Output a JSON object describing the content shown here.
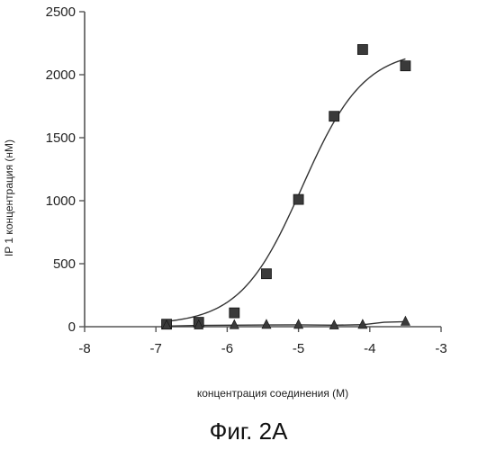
{
  "chart_data": {
    "type": "scatter",
    "title": "",
    "xlabel": "концентрация соединения (M)",
    "ylabel": "IP 1 концентрация (нM)",
    "xlim": [
      -8,
      -3
    ],
    "ylim": [
      0,
      2500
    ],
    "x_ticks": [
      "-8",
      "-7",
      "-6",
      "-5",
      "-4",
      "-3"
    ],
    "y_ticks": [
      "0",
      "500",
      "1000",
      "1500",
      "2000",
      "2500"
    ],
    "grid": false,
    "legend": "none",
    "series": [
      {
        "marker": "square",
        "color": "#3a3a3a",
        "x": [
          -6.85,
          -6.4,
          -5.9,
          -5.45,
          -5.0,
          -4.5,
          -4.1,
          -3.5
        ],
        "y": [
          20,
          35,
          110,
          420,
          1010,
          1670,
          2200,
          2070
        ],
        "fit": {
          "bottom": 15,
          "top": 2200,
          "log_ec50": -4.95,
          "hill": 1.0
        }
      },
      {
        "marker": "triangle",
        "color": "#3a3a3a",
        "x": [
          -6.85,
          -6.4,
          -5.9,
          -5.45,
          -5.0,
          -4.5,
          -4.1,
          -3.5
        ],
        "y": [
          10,
          10,
          12,
          15,
          15,
          10,
          15,
          40
        ],
        "fit": {
          "x": [
            -6.85,
            -6.4,
            -5.9,
            -5.45,
            -5.0,
            -4.5,
            -4.1,
            -3.8,
            -3.5
          ],
          "y": [
            5,
            10,
            12,
            14,
            15,
            12,
            16,
            35,
            40
          ]
        }
      }
    ]
  },
  "caption": "Фиг. 2A"
}
